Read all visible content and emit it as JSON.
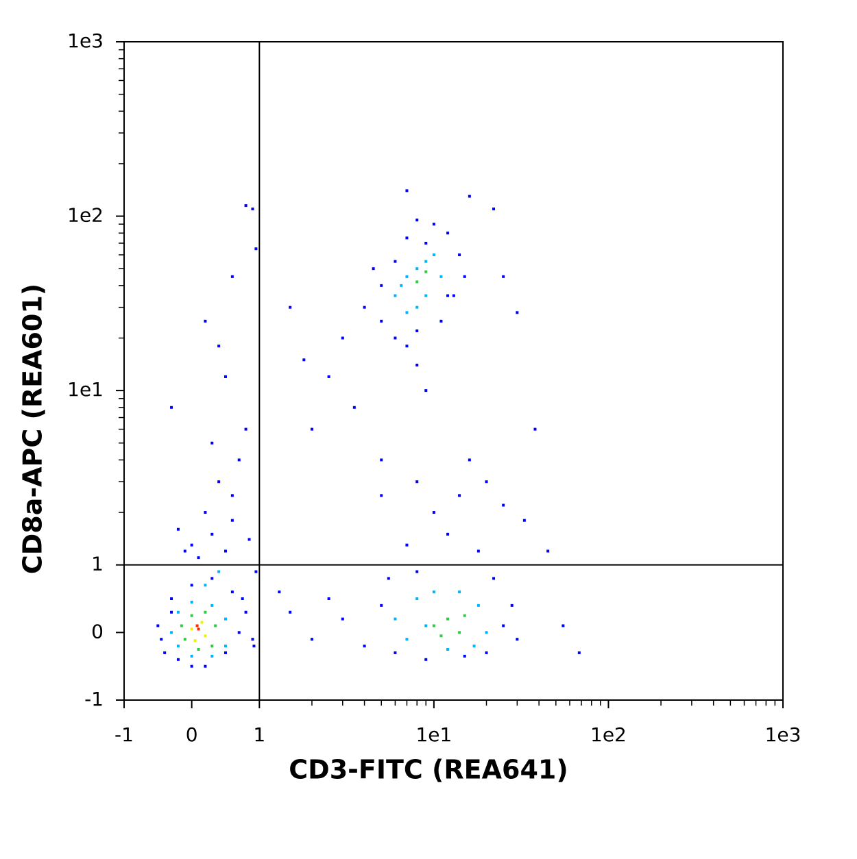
{
  "chart_data": {
    "type": "scatter",
    "x_label": "CD3-FITC (REA641)",
    "y_label": "CD8a-APC (REA601)",
    "scale": "biexponential",
    "xlim": [
      -1,
      1000
    ],
    "ylim": [
      -1,
      1000
    ],
    "xticks": [
      -1,
      0,
      1,
      {
        "value": 10,
        "label": "1e1"
      },
      {
        "value": 100,
        "label": "1e2"
      },
      {
        "value": 1000,
        "label": "1e3"
      }
    ],
    "yticks": [
      -1,
      0,
      1,
      {
        "value": 10,
        "label": "1e1"
      },
      {
        "value": 100,
        "label": "1e2"
      },
      {
        "value": 1000,
        "label": "1e3"
      }
    ],
    "xminorticks": [
      2,
      3,
      4,
      5,
      6,
      7,
      8,
      9,
      20,
      30,
      40,
      50,
      60,
      70,
      80,
      90,
      200,
      300,
      400,
      500,
      600,
      700,
      800,
      900
    ],
    "yminorticks": [
      2,
      3,
      4,
      5,
      6,
      7,
      8,
      9,
      20,
      30,
      40,
      50,
      60,
      70,
      80,
      90,
      200,
      300,
      400,
      500,
      600,
      700,
      800,
      900
    ],
    "gate": {
      "x": 1,
      "y": 1
    },
    "series": [
      {
        "color": "#0000ff",
        "x": [
          -0.5,
          -0.4,
          -0.3,
          -0.2,
          0.0,
          0.2,
          0.5,
          0.7,
          0.8,
          0.6,
          0.3,
          0.0,
          -0.3,
          -0.45,
          0.9,
          0.75,
          0.1,
          0.3,
          0.0,
          0.5,
          0.2,
          0.6,
          0.4,
          -0.2,
          0.7,
          0.3,
          0.8,
          -0.3,
          0.5,
          0.2,
          0.4,
          0.6,
          0.9,
          0.8,
          0.95,
          0.6,
          0.85,
          -0.1,
          0.95,
          0.92,
          3,
          4,
          5,
          6,
          5.5,
          7,
          8,
          9,
          15,
          20,
          25,
          28,
          22,
          18,
          12,
          10,
          14,
          20,
          25,
          33,
          45,
          55,
          68,
          2.5,
          2,
          1.5,
          1.3,
          30,
          16,
          8,
          5,
          4,
          5,
          5,
          6,
          7,
          8,
          9,
          10,
          12,
          14,
          15,
          13,
          11,
          6,
          7,
          8,
          4.5,
          3,
          2.5,
          2,
          3.5,
          5,
          8,
          9,
          1.5,
          1.8,
          25,
          30,
          38,
          22,
          16,
          12,
          7
        ],
        "y": [
          0.1,
          -0.3,
          0.5,
          -0.4,
          -0.5,
          -0.5,
          -0.3,
          0.0,
          0.3,
          0.6,
          0.8,
          0.7,
          0.3,
          -0.1,
          -0.1,
          0.5,
          1.1,
          1.5,
          1.3,
          1.2,
          2,
          2.5,
          3,
          1.6,
          4,
          5,
          6,
          8,
          12,
          25,
          18,
          45,
          110,
          115,
          65,
          1.8,
          1.4,
          1.2,
          0.9,
          -0.2,
          0.2,
          -0.2,
          0.4,
          -0.3,
          0.8,
          1.3,
          0.9,
          -0.4,
          -0.35,
          -0.3,
          0.1,
          0.4,
          0.8,
          1.2,
          1.5,
          2,
          2.5,
          3,
          2.2,
          1.8,
          1.2,
          0.1,
          -0.3,
          0.5,
          -0.1,
          0.3,
          0.6,
          -0.1,
          4,
          3,
          2.5,
          30,
          40,
          25,
          20,
          18,
          22,
          70,
          90,
          80,
          60,
          45,
          35,
          25,
          55,
          75,
          95,
          50,
          20,
          12,
          6,
          8,
          4,
          14,
          10,
          30,
          15,
          45,
          28,
          6,
          110,
          130,
          35,
          140
        ]
      },
      {
        "color": "#00b4ff",
        "x": [
          -0.3,
          -0.2,
          0.0,
          0.3,
          0.5,
          0.5,
          0.3,
          0.0,
          -0.2,
          0.2,
          0.4,
          6,
          7,
          8,
          10,
          14,
          18,
          20,
          17,
          12,
          9,
          6,
          7,
          8,
          9,
          10,
          11,
          9,
          8,
          7,
          6.5
        ],
        "y": [
          0.0,
          0.3,
          0.45,
          0.4,
          0.2,
          -0.2,
          -0.35,
          -0.35,
          -0.2,
          0.7,
          0.9,
          0.2,
          -0.1,
          0.5,
          0.6,
          0.6,
          0.4,
          0.0,
          -0.2,
          -0.25,
          0.1,
          35,
          45,
          50,
          55,
          60,
          45,
          35,
          30,
          28,
          40
        ]
      },
      {
        "color": "#2ecc40",
        "x": [
          -0.15,
          0.0,
          0.2,
          0.35,
          0.3,
          0.1,
          -0.1,
          10,
          12,
          14,
          11,
          15,
          8,
          9
        ],
        "y": [
          0.1,
          0.25,
          0.3,
          0.1,
          -0.2,
          -0.25,
          -0.1,
          0.1,
          0.2,
          0.0,
          -0.05,
          0.25,
          42,
          48
        ]
      },
      {
        "color": "#f0f000",
        "x": [
          0.0,
          0.15,
          0.2,
          0.05
        ],
        "y": [
          0.05,
          0.15,
          -0.05,
          -0.12
        ]
      },
      {
        "color": "#ff2a00",
        "x": [
          0.1,
          0.08
        ],
        "y": [
          0.05,
          0.1
        ]
      }
    ]
  }
}
